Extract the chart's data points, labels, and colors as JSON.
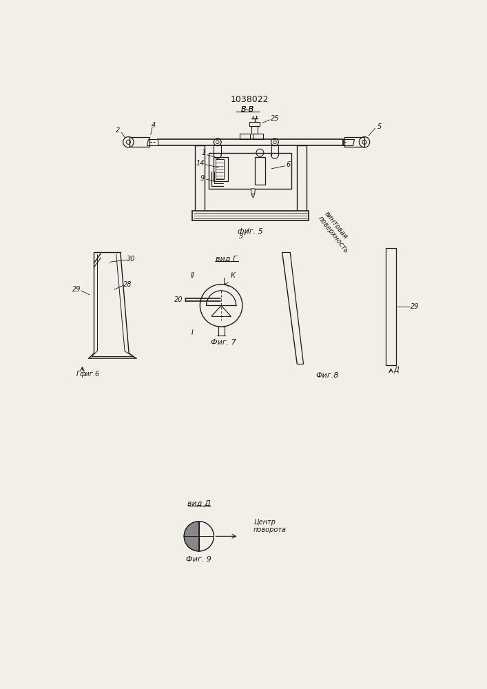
{
  "title": "1038022",
  "bg_color": "#f2efe9",
  "line_color": "#1a1a1a",
  "fig5_label": "фиг. 5",
  "fig6_label": "фиг.6",
  "fig7_label": "Фиг. 7",
  "fig8_label": "Фиг.8",
  "fig9_label": "Фиг. 9",
  "section_label": "В-В",
  "vid_g_label": "вид Г",
  "vid_d_label": "вид Д",
  "center_label": "Центр\nповорота",
  "screw_label": "винтовая\nповерхность"
}
